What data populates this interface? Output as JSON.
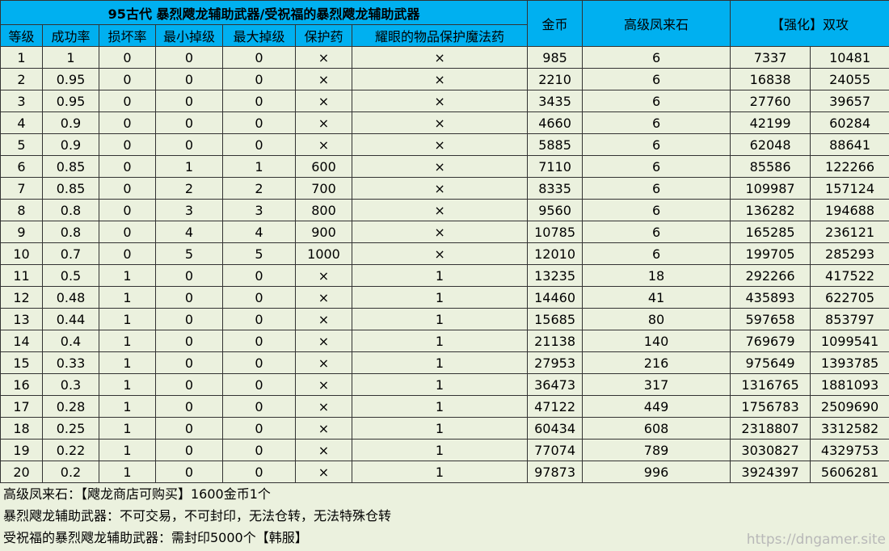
{
  "header": {
    "title": "95古代 暴烈飕龙辅助武器/受祝福的暴烈飕龙辅助武器",
    "columns": [
      "等级",
      "成功率",
      "损坏率",
      "最小掉级",
      "最大掉级",
      "保护药",
      "耀眼的物品保护魔法药"
    ],
    "gold": "金币",
    "stone": "高级凤来石",
    "enhance": "【强化】双攻"
  },
  "table": {
    "rows": [
      [
        1,
        1,
        0,
        0,
        0,
        "×",
        "×",
        985,
        6,
        7337,
        10481
      ],
      [
        2,
        0.95,
        0,
        0,
        0,
        "×",
        "×",
        2210,
        6,
        16838,
        24055
      ],
      [
        3,
        0.95,
        0,
        0,
        0,
        "×",
        "×",
        3435,
        6,
        27760,
        39657
      ],
      [
        4,
        0.9,
        0,
        0,
        0,
        "×",
        "×",
        4660,
        6,
        42199,
        60284
      ],
      [
        5,
        0.9,
        0,
        0,
        0,
        "×",
        "×",
        5885,
        6,
        62048,
        88641
      ],
      [
        6,
        0.85,
        0,
        1,
        1,
        600,
        "×",
        7110,
        6,
        85586,
        122266
      ],
      [
        7,
        0.85,
        0,
        2,
        2,
        700,
        "×",
        8335,
        6,
        109987,
        157124
      ],
      [
        8,
        0.8,
        0,
        3,
        3,
        800,
        "×",
        9560,
        6,
        136282,
        194688
      ],
      [
        9,
        0.8,
        0,
        4,
        4,
        900,
        "×",
        10785,
        6,
        165285,
        236121
      ],
      [
        10,
        0.7,
        0,
        5,
        5,
        1000,
        "×",
        12010,
        6,
        199705,
        285293
      ],
      [
        11,
        0.5,
        1,
        0,
        0,
        "×",
        1,
        13235,
        18,
        292266,
        417522
      ],
      [
        12,
        0.48,
        1,
        0,
        0,
        "×",
        1,
        14460,
        41,
        435893,
        622705
      ],
      [
        13,
        0.44,
        1,
        0,
        0,
        "×",
        1,
        15685,
        80,
        597658,
        853797
      ],
      [
        14,
        0.4,
        1,
        0,
        0,
        "×",
        1,
        21138,
        140,
        769679,
        1099541
      ],
      [
        15,
        0.33,
        1,
        0,
        0,
        "×",
        1,
        27953,
        216,
        975649,
        1393785
      ],
      [
        16,
        0.3,
        1,
        0,
        0,
        "×",
        1,
        36473,
        317,
        1316765,
        1881093
      ],
      [
        17,
        0.28,
        1,
        0,
        0,
        "×",
        1,
        47122,
        449,
        1756783,
        2509690
      ],
      [
        18,
        0.25,
        1,
        0,
        0,
        "×",
        1,
        60434,
        608,
        2318807,
        3312582
      ],
      [
        19,
        0.22,
        1,
        0,
        0,
        "×",
        1,
        77074,
        789,
        3030827,
        4329753
      ],
      [
        20,
        0.2,
        1,
        0,
        0,
        "×",
        1,
        97873,
        996,
        3924397,
        5606281
      ]
    ]
  },
  "notes": [
    "高级凤来石：【飕龙商店可购买】1600金币1个",
    "暴烈飕龙辅助武器：不可交易，不可封印，无法仓转，无法特殊仓转",
    "受祝福的暴烈飕龙辅助武器：需封印5000个【韩服】"
  ],
  "watermark": "https://dngamer.site"
}
